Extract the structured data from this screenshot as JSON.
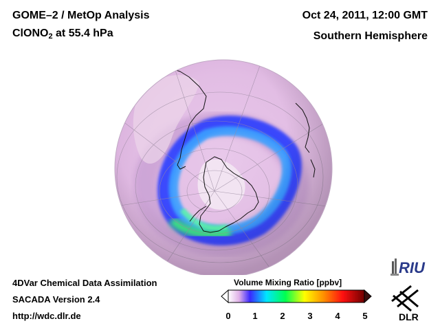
{
  "header": {
    "title_line1": "GOME–2 / MetOp Analysis",
    "species_prefix": "ClONO",
    "species_subscript": "2",
    "species_suffix": " at 55.4 hPa",
    "date": "Oct 24, 2011, 12:00 GMT",
    "region": "Southern Hemisphere"
  },
  "footer": {
    "line1": "4DVar Chemical Data Assimilation",
    "line2": "SACADA Version 2.4",
    "line3": "http://wdc.dlr.de"
  },
  "colorbar": {
    "label": "Volume Mixing Ratio [ppbv]",
    "ticks": [
      "0",
      "1",
      "2",
      "3",
      "4",
      "5"
    ],
    "min": 0,
    "max": 5,
    "colors": [
      "#ffffff",
      "#d8a0e0",
      "#1a1aff",
      "#00e6ff",
      "#00ff40",
      "#ffff00",
      "#ff8000",
      "#ff0000",
      "#800000"
    ]
  },
  "logos": {
    "riu": "RIU",
    "dlr": "DLR"
  },
  "map": {
    "projection": "orthographic",
    "hemisphere": "south",
    "background_value_color": "#e6c0e6",
    "land_outline_color": "#000000"
  }
}
